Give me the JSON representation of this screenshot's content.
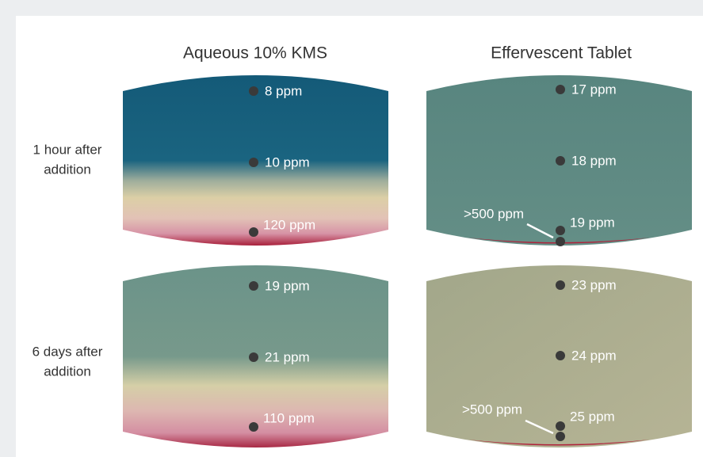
{
  "columns": [
    "Aqueous 10% KMS",
    "Effervescent Tablet"
  ],
  "rows": [
    [
      "1 hour after",
      "addition"
    ],
    [
      "6 days after",
      "addition"
    ]
  ],
  "panels": [
    {
      "points": [
        "8 ppm",
        "10 ppm",
        "120 ppm"
      ]
    },
    {
      "points": [
        "17 ppm",
        "18 ppm",
        "19 ppm"
      ],
      "callout": ">500 ppm"
    },
    {
      "points": [
        "19 ppm",
        "21 ppm",
        "110 ppm"
      ]
    },
    {
      "points": [
        "23 ppm",
        "24 ppm",
        "25 ppm"
      ],
      "callout": ">500 ppm"
    }
  ]
}
